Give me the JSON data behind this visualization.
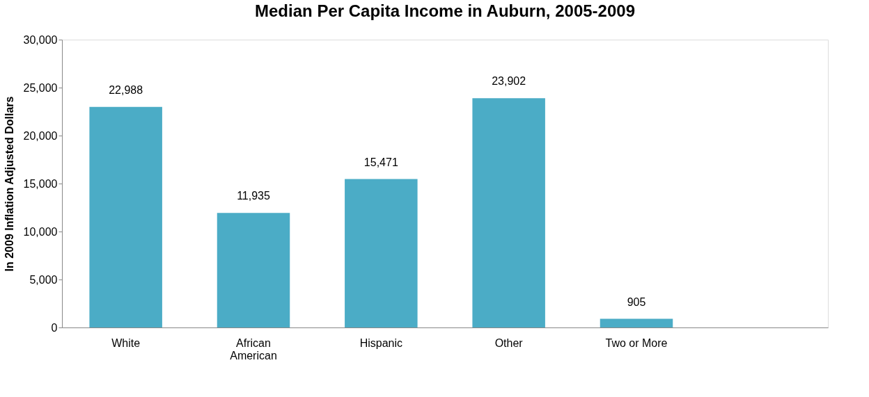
{
  "chart_data": {
    "type": "bar",
    "title": "Median Per Capita Income in Auburn, 2005-2009",
    "ylabel": "In 2009 Inflation Adjusted Dollars",
    "categories": [
      "White",
      "African American",
      "Hispanic",
      "Other",
      "Two or More",
      null
    ],
    "values": [
      22988,
      11935,
      15471,
      23902,
      905,
      null
    ],
    "value_labels": [
      "22,988",
      "11,935",
      "15,471",
      "23,902",
      "905",
      null
    ],
    "color": "#4bacc6",
    "ylim": [
      0,
      30000
    ],
    "yticks": [
      0,
      {
        "value": 5000,
        "label": "5,000"
      },
      {
        "value": 10000,
        "label": "10,000"
      },
      {
        "value": 15000,
        "label": "15,000"
      },
      {
        "value": 20000,
        "label": "20,000"
      },
      {
        "value": 25000,
        "label": "25,000"
      },
      {
        "value": 30000,
        "label": "30,000"
      }
    ],
    "grid": false
  }
}
